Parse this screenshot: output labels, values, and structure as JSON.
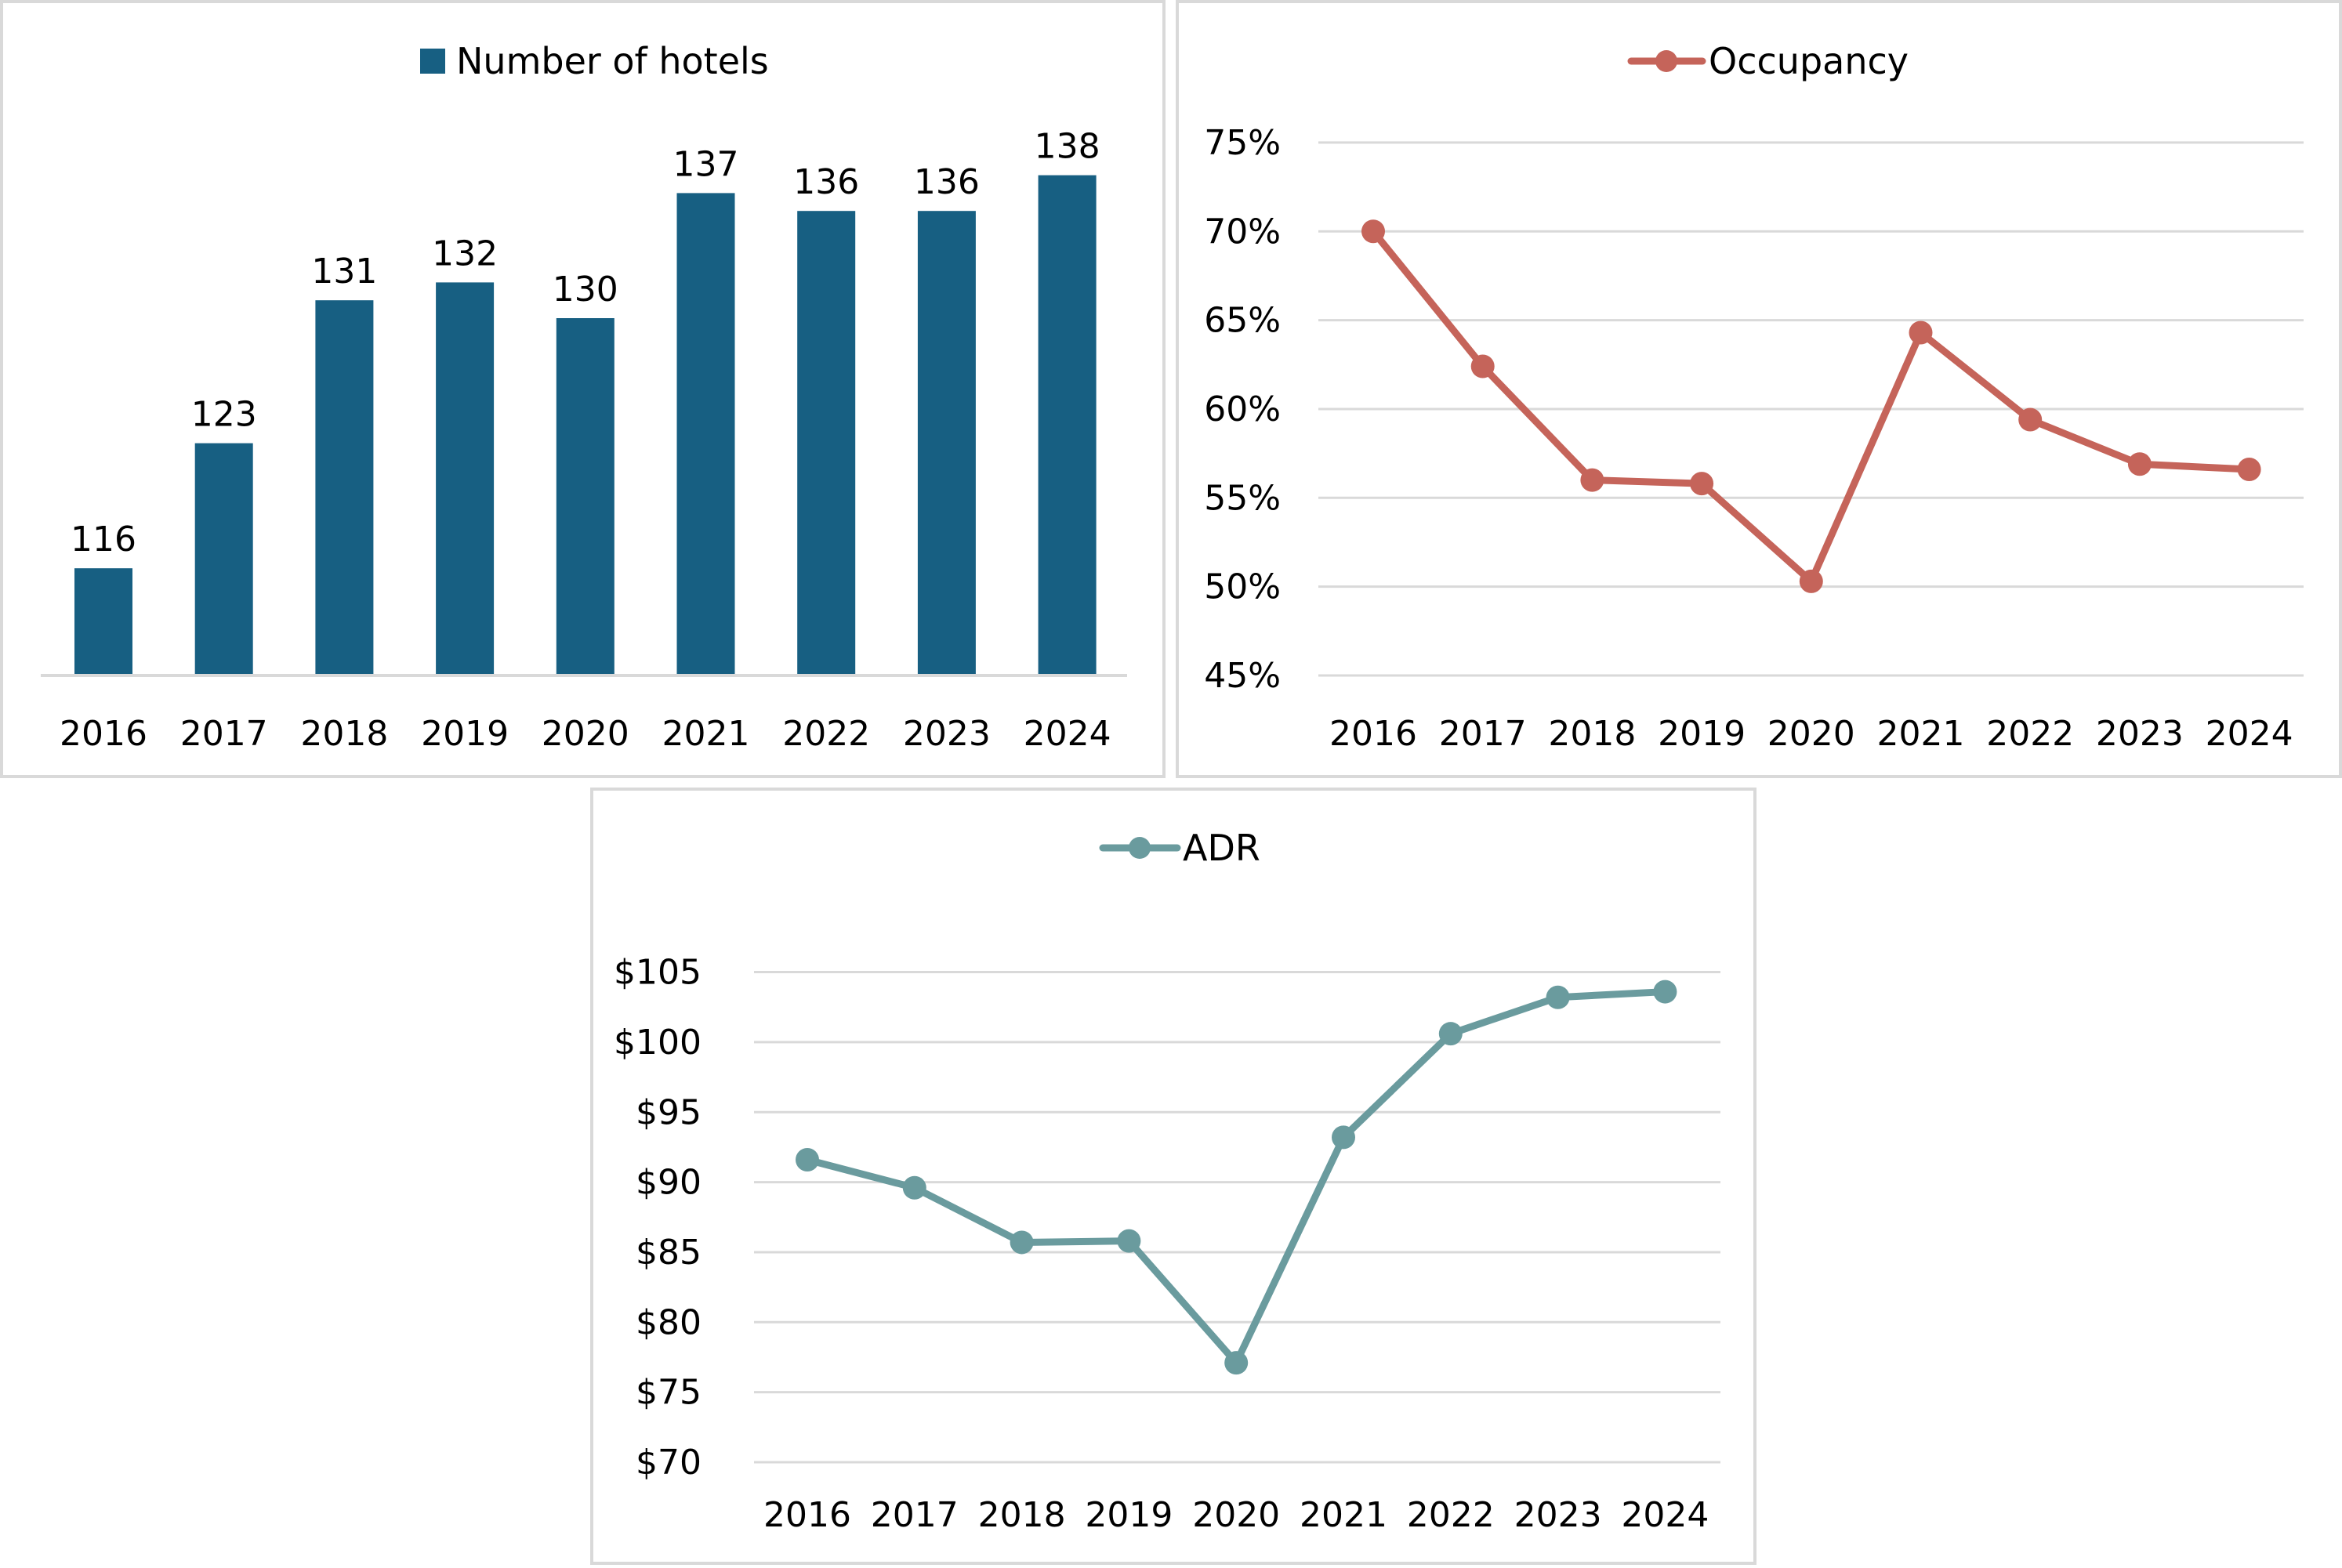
{
  "colors": {
    "bar": "#175F82",
    "occupancy": "#C5645A",
    "adr": "#6A9B9E",
    "gridline": "#D9D9D9",
    "panel_border": "#D9D9D9"
  },
  "chart_data": [
    {
      "id": "hotels",
      "type": "bar",
      "title": "",
      "legend": {
        "label": "Number of hotels",
        "position": "top"
      },
      "categories": [
        "2016",
        "2017",
        "2018",
        "2019",
        "2020",
        "2021",
        "2022",
        "2023",
        "2024"
      ],
      "values": [
        116,
        123,
        131,
        132,
        130,
        137,
        136,
        136,
        138
      ],
      "data_labels": [
        "116",
        "123",
        "131",
        "132",
        "130",
        "137",
        "136",
        "136",
        "138"
      ],
      "xlabel": "",
      "ylabel": "",
      "ylim": [
        110,
        140
      ],
      "y_axis_visible": false,
      "grid": false
    },
    {
      "id": "occupancy",
      "type": "line",
      "title": "",
      "legend": {
        "label": "Occupancy",
        "position": "top"
      },
      "categories": [
        "2016",
        "2017",
        "2018",
        "2019",
        "2020",
        "2021",
        "2022",
        "2023",
        "2024"
      ],
      "values": [
        70.0,
        62.4,
        56.0,
        55.8,
        50.3,
        64.3,
        59.4,
        56.9,
        56.6
      ],
      "unit": "%",
      "xlabel": "",
      "ylabel": "",
      "ylim": [
        45,
        75
      ],
      "yticks": [
        45,
        50,
        55,
        60,
        65,
        70,
        75
      ],
      "ytick_labels": [
        "45%",
        "50%",
        "55%",
        "60%",
        "65%",
        "70%",
        "75%"
      ],
      "grid": true,
      "markers": true
    },
    {
      "id": "adr",
      "type": "line",
      "title": "",
      "legend": {
        "label": "ADR",
        "position": "top"
      },
      "categories": [
        "2016",
        "2017",
        "2018",
        "2019",
        "2020",
        "2021",
        "2022",
        "2023",
        "2024"
      ],
      "values": [
        91.6,
        89.6,
        85.7,
        85.8,
        77.1,
        93.2,
        100.6,
        103.2,
        103.6
      ],
      "unit": "$",
      "xlabel": "",
      "ylabel": "",
      "ylim": [
        70,
        105
      ],
      "yticks": [
        70,
        75,
        80,
        85,
        90,
        95,
        100,
        105
      ],
      "ytick_labels": [
        "$70",
        "$75",
        "$80",
        "$85",
        "$90",
        "$95",
        "$100",
        "$105"
      ],
      "grid": true,
      "markers": true
    }
  ]
}
